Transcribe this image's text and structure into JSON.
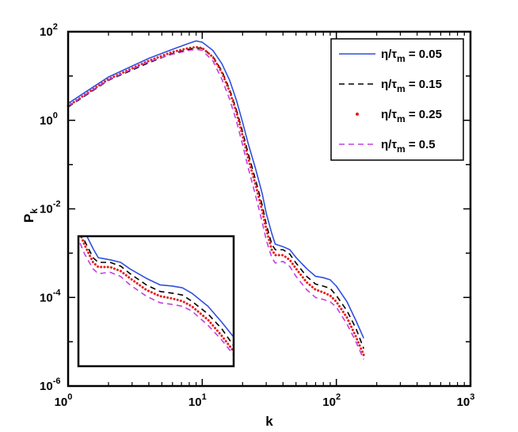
{
  "chart_data": {
    "type": "line",
    "xscale": "log",
    "yscale": "log",
    "xlim": [
      1,
      1000
    ],
    "ylim": [
      1e-06,
      100
    ],
    "xlabel": "k",
    "ylabel": {
      "base": "P",
      "sub": "k"
    },
    "x_ticks": [
      {
        "value": 1,
        "base": "10",
        "exp": "0"
      },
      {
        "value": 10,
        "base": "10",
        "exp": "1"
      },
      {
        "value": 100,
        "base": "10",
        "exp": "2"
      },
      {
        "value": 1000,
        "base": "10",
        "exp": "3"
      }
    ],
    "y_ticks": [
      {
        "value": 1e-06,
        "base": "10",
        "exp": "-6"
      },
      {
        "value": 0.0001,
        "base": "10",
        "exp": "-4"
      },
      {
        "value": 0.01,
        "base": "10",
        "exp": "-2"
      },
      {
        "value": 1,
        "base": "10",
        "exp": "0"
      },
      {
        "value": 100,
        "base": "10",
        "exp": "2"
      }
    ],
    "legend_position": "top-right",
    "series": [
      {
        "name": "η/τm = 0.05",
        "label": {
          "pre": "η/τ",
          "sub": "m",
          "post": " = 0.05"
        },
        "color": "#2f4fe0",
        "style": "solid",
        "points": [
          [
            1,
            2.4
          ],
          [
            2,
            9.5
          ],
          [
            4,
            25
          ],
          [
            6,
            40
          ],
          [
            8,
            55
          ],
          [
            9,
            62
          ],
          [
            10,
            58
          ],
          [
            12,
            38
          ],
          [
            14,
            19
          ],
          [
            16,
            8
          ],
          [
            18,
            2.8
          ],
          [
            20,
            0.9
          ],
          [
            22,
            0.3
          ],
          [
            25,
            0.08
          ],
          [
            28,
            0.022
          ],
          [
            30,
            0.008
          ],
          [
            33,
            0.0028
          ],
          [
            35,
            0.0016
          ],
          [
            40,
            0.0014
          ],
          [
            45,
            0.0012
          ],
          [
            50,
            0.0008
          ],
          [
            60,
            0.00045
          ],
          [
            70,
            0.0003
          ],
          [
            80,
            0.00028
          ],
          [
            90,
            0.00025
          ],
          [
            100,
            0.00018
          ],
          [
            120,
            8e-05
          ],
          [
            140,
            3e-05
          ],
          [
            160,
            1.2e-05
          ]
        ]
      },
      {
        "name": "η/τm = 0.15",
        "label": {
          "pre": "η/τ",
          "sub": "m",
          "post": " = 0.15"
        },
        "color": "#000000",
        "style": "dashed",
        "points": [
          [
            1,
            2.0
          ],
          [
            2,
            8
          ],
          [
            4,
            20
          ],
          [
            6,
            32
          ],
          [
            8,
            40
          ],
          [
            9,
            43
          ],
          [
            10,
            42
          ],
          [
            12,
            28
          ],
          [
            14,
            13
          ],
          [
            16,
            5
          ],
          [
            18,
            1.7
          ],
          [
            20,
            0.55
          ],
          [
            22,
            0.18
          ],
          [
            25,
            0.045
          ],
          [
            28,
            0.012
          ],
          [
            30,
            0.0045
          ],
          [
            33,
            0.0016
          ],
          [
            35,
            0.0012
          ],
          [
            40,
            0.0012
          ],
          [
            45,
            0.00095
          ],
          [
            50,
            0.0006
          ],
          [
            60,
            0.0003
          ],
          [
            70,
            0.0002
          ],
          [
            80,
            0.00018
          ],
          [
            90,
            0.00016
          ],
          [
            100,
            0.00011
          ],
          [
            120,
            5e-05
          ],
          [
            140,
            2e-05
          ],
          [
            160,
            7e-06
          ]
        ]
      },
      {
        "name": "η/τm = 0.25",
        "label": {
          "pre": "η/τ",
          "sub": "m",
          "post": " = 0.25"
        },
        "color": "#e81c1c",
        "style": "dotted",
        "points": [
          [
            1,
            2.1
          ],
          [
            2,
            8.5
          ],
          [
            4,
            22
          ],
          [
            6,
            35
          ],
          [
            8,
            43
          ],
          [
            9,
            45
          ],
          [
            10,
            43
          ],
          [
            12,
            27
          ],
          [
            14,
            12
          ],
          [
            16,
            4.5
          ],
          [
            18,
            1.5
          ],
          [
            20,
            0.45
          ],
          [
            22,
            0.14
          ],
          [
            25,
            0.035
          ],
          [
            28,
            0.009
          ],
          [
            30,
            0.0035
          ],
          [
            33,
            0.0012
          ],
          [
            35,
            0.0009
          ],
          [
            40,
            0.0009
          ],
          [
            45,
            0.0007
          ],
          [
            50,
            0.00045
          ],
          [
            60,
            0.00022
          ],
          [
            70,
            0.00015
          ],
          [
            80,
            0.00013
          ],
          [
            90,
            0.00011
          ],
          [
            100,
            8e-05
          ],
          [
            120,
            3.5e-05
          ],
          [
            140,
            1.3e-05
          ],
          [
            160,
            5e-06
          ]
        ]
      },
      {
        "name": "η/τm = 0.5",
        "label": {
          "pre": "η/τ",
          "sub": "m",
          "post": " = 0.5"
        },
        "color": "#c040e0",
        "style": "dashed",
        "points": [
          [
            1,
            2.1
          ],
          [
            2,
            8.2
          ],
          [
            4,
            21
          ],
          [
            6,
            31
          ],
          [
            8,
            38
          ],
          [
            9,
            40
          ],
          [
            10,
            38
          ],
          [
            12,
            22
          ],
          [
            14,
            8.5
          ],
          [
            16,
            3
          ],
          [
            18,
            0.95
          ],
          [
            20,
            0.28
          ],
          [
            22,
            0.085
          ],
          [
            25,
            0.02
          ],
          [
            28,
            0.005
          ],
          [
            30,
            0.002
          ],
          [
            33,
            0.0008
          ],
          [
            35,
            0.0006
          ],
          [
            40,
            0.00065
          ],
          [
            45,
            0.0005
          ],
          [
            50,
            0.0003
          ],
          [
            60,
            0.00015
          ],
          [
            70,
            0.0001
          ],
          [
            80,
            9e-05
          ],
          [
            90,
            8e-05
          ],
          [
            100,
            6e-05
          ],
          [
            120,
            2.5e-05
          ],
          [
            140,
            1e-05
          ],
          [
            160,
            4e-06
          ]
        ]
      }
    ],
    "inset": {
      "xlim": [
        28,
        160
      ],
      "ylim": [
        2e-06,
        0.006
      ],
      "xscale": "log",
      "yscale": "log"
    }
  }
}
